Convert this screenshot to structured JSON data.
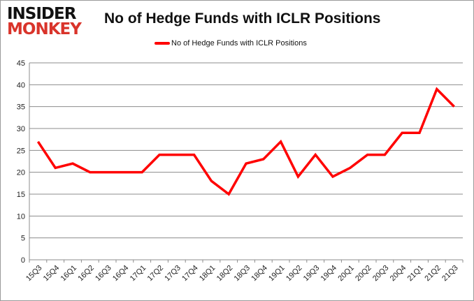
{
  "logo": {
    "line1": "INSIDER",
    "line2": "MONKEY"
  },
  "chart_data": {
    "type": "line",
    "title": "No of Hedge Funds with ICLR Positions",
    "categories": [
      "15Q3",
      "15Q4",
      "16Q1",
      "16Q2",
      "16Q3",
      "16Q4",
      "17Q1",
      "17Q2",
      "17Q3",
      "17Q4",
      "18Q1",
      "18Q2",
      "18Q3",
      "18Q4",
      "19Q1",
      "19Q2",
      "19Q3",
      "19Q4",
      "20Q1",
      "20Q2",
      "20Q3",
      "20Q4",
      "21Q1",
      "21Q2",
      "21Q3"
    ],
    "series": [
      {
        "name": "No of Hedge Funds with ICLR Positions",
        "color": "#ff0000",
        "values": [
          27,
          21,
          22,
          20,
          20,
          20,
          20,
          24,
          24,
          24,
          18,
          15,
          22,
          23,
          27,
          19,
          24,
          19,
          21,
          24,
          24,
          29,
          29,
          39,
          35
        ]
      }
    ],
    "ylim": [
      0,
      45
    ],
    "yticks": [
      0,
      5,
      10,
      15,
      20,
      25,
      30,
      35,
      40,
      45
    ],
    "grid": true,
    "legend": "top"
  }
}
